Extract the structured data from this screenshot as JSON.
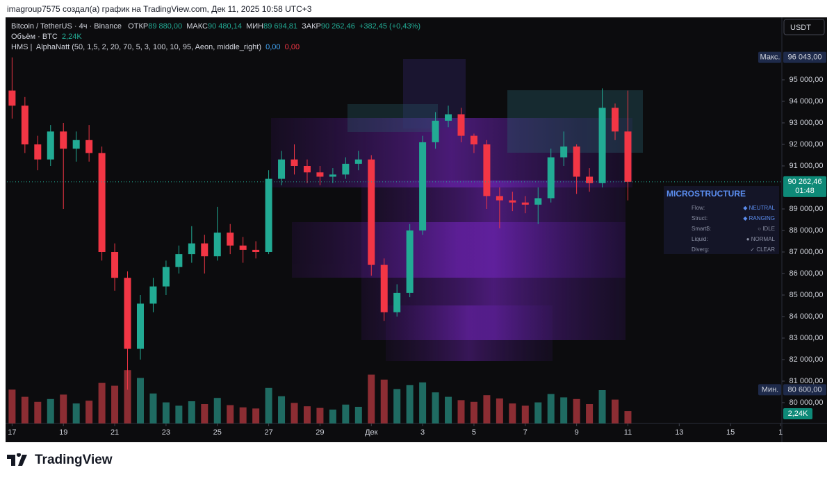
{
  "header": {
    "attribution": "imagroup7575 создал(а) график на TradingView.com, Дек 11, 2025 10:58 UTC+3",
    "symbol": "Bitcoin / TetherUS · 4ч · Binance",
    "ohlc": [
      {
        "name": "ОТКР",
        "value": "89 880,00"
      },
      {
        "name": "МАКС",
        "value": "90 480,14"
      },
      {
        "name": "МИН",
        "value": "89 694,81"
      },
      {
        "name": "ЗАКР",
        "value": "90 262,46"
      }
    ],
    "change": "+382,45 (+0,43%)",
    "volume_title": "Объём · BTC",
    "volume_value": "2,24K",
    "indicator_name": "HMS",
    "indicator_params": "AlphaNatt (50, 1,5, 2, 20, 70, 5, 3, 100, 10, 95, Aeon, middle_right)",
    "indicator_values": [
      "0,00",
      "0,00"
    ]
  },
  "chart_data": {
    "type": "candlestick",
    "x": [
      0,
      0.5,
      1,
      1.5,
      2,
      2.5,
      3,
      3.5,
      4,
      4.5,
      5,
      5.5,
      6,
      6.5,
      7,
      7.5,
      8,
      8.5,
      9,
      9.5,
      10,
      10.5,
      11,
      11.5,
      12,
      12.5,
      13,
      13.5,
      14,
      14.5,
      15,
      15.5,
      16,
      16.5,
      17,
      17.5,
      18,
      18.5,
      19,
      19.5,
      20,
      20.5,
      21,
      21.5,
      22,
      22.5,
      23,
      23.5,
      24
    ],
    "open": [
      94500,
      93800,
      92000,
      91300,
      92600,
      91800,
      92200,
      91600,
      87000,
      85800,
      82500,
      84600,
      85400,
      86300,
      86900,
      87400,
      86800,
      87900,
      87300,
      87100,
      87000,
      90400,
      91300,
      91000,
      90700,
      90500,
      90600,
      91100,
      91300,
      86400,
      84200,
      85100,
      88000,
      92100,
      93100,
      93400,
      92400,
      92000,
      89600,
      89400,
      89300,
      89200,
      89500,
      91400,
      91900,
      90500,
      90200,
      93700,
      92600
    ],
    "high": [
      96043,
      94200,
      92400,
      92900,
      93000,
      92600,
      92900,
      91900,
      87400,
      86100,
      85000,
      85800,
      86600,
      87300,
      88200,
      87800,
      89100,
      88300,
      87700,
      87500,
      90800,
      91700,
      92000,
      91300,
      91000,
      90900,
      91400,
      91700,
      91500,
      86700,
      85500,
      88300,
      92400,
      93500,
      93800,
      93700,
      92500,
      92200,
      90000,
      89800,
      89600,
      90000,
      91800,
      92600,
      92000,
      90900,
      94600,
      93900,
      94500
    ],
    "low": [
      93200,
      91600,
      90800,
      91000,
      89000,
      91200,
      91200,
      86600,
      85200,
      80600,
      82000,
      84200,
      85000,
      86000,
      86500,
      86000,
      86600,
      86900,
      86500,
      86700,
      86900,
      90100,
      90600,
      90200,
      90100,
      90200,
      90400,
      90800,
      85900,
      83800,
      84000,
      84900,
      87800,
      91800,
      92800,
      92100,
      91600,
      89000,
      88100,
      88900,
      88800,
      88300,
      89300,
      91000,
      89700,
      89800,
      90000,
      92200,
      89400
    ],
    "close": [
      93800,
      92000,
      91300,
      92600,
      91800,
      92200,
      91600,
      87000,
      85800,
      82500,
      84600,
      85400,
      86300,
      86900,
      87400,
      86800,
      87900,
      87300,
      87100,
      87000,
      90400,
      91300,
      91000,
      90700,
      90500,
      90600,
      91100,
      91300,
      86400,
      84200,
      85100,
      88000,
      92100,
      93100,
      93400,
      92400,
      92000,
      89600,
      89400,
      89300,
      89200,
      89500,
      91400,
      91900,
      90500,
      90200,
      93700,
      92600,
      90262.46
    ],
    "volume": [
      6.1,
      4.8,
      3.9,
      4.4,
      5.2,
      3.6,
      4.1,
      7.3,
      6.8,
      9.6,
      8.2,
      5.4,
      3.8,
      3.2,
      4.0,
      3.5,
      4.6,
      3.3,
      2.9,
      2.7,
      6.4,
      4.9,
      3.7,
      3.1,
      2.8,
      2.5,
      3.4,
      3.0,
      8.8,
      7.9,
      6.2,
      6.9,
      7.4,
      5.6,
      4.8,
      4.2,
      3.9,
      5.1,
      4.5,
      3.6,
      3.2,
      3.8,
      5.3,
      4.7,
      4.4,
      3.5,
      6.0,
      4.3,
      2.24
    ],
    "colors": {
      "up": "#22ab94",
      "down": "#f23645",
      "up_volume": "#1f6b62",
      "down_volume": "#8c2d33"
    },
    "ylim": [
      79032,
      97742
    ],
    "yticks": [
      {
        "value": 80000,
        "label": "80 000,00"
      },
      {
        "value": 81000,
        "label": "81 000,00"
      },
      {
        "value": 82000,
        "label": "82 000,00"
      },
      {
        "value": 83000,
        "label": "83 000,00"
      },
      {
        "value": 84000,
        "label": "84 000,00"
      },
      {
        "value": 85000,
        "label": "85 000,00"
      },
      {
        "value": 86000,
        "label": "86 000,00"
      },
      {
        "value": 87000,
        "label": "87 000,00"
      },
      {
        "value": 88000,
        "label": "88 000,00"
      },
      {
        "value": 89000,
        "label": "89 000,00"
      },
      {
        "value": 91000,
        "label": "91 000,00"
      },
      {
        "value": 92000,
        "label": "92 000,00"
      },
      {
        "value": 93000,
        "label": "93 000,00"
      },
      {
        "value": 94000,
        "label": "94 000,00"
      },
      {
        "value": 95000,
        "label": "95 000,00"
      }
    ],
    "xlim": [
      -0.2,
      30
    ],
    "xticks": [
      {
        "value": 0,
        "label": "17"
      },
      {
        "value": 2,
        "label": "19"
      },
      {
        "value": 4,
        "label": "21"
      },
      {
        "value": 6,
        "label": "23"
      },
      {
        "value": 8,
        "label": "25"
      },
      {
        "value": 10,
        "label": "27"
      },
      {
        "value": 12,
        "label": "29"
      },
      {
        "value": 14,
        "label": "Дек"
      },
      {
        "value": 16,
        "label": "3"
      },
      {
        "value": 18,
        "label": "5"
      },
      {
        "value": 20,
        "label": "7"
      },
      {
        "value": 22,
        "label": "9"
      },
      {
        "value": 24,
        "label": "11"
      },
      {
        "value": 26,
        "label": "13"
      },
      {
        "value": 28,
        "label": "15"
      },
      {
        "value": 29.95,
        "label": "1"
      }
    ],
    "volume_lim": [
      0,
      10
    ],
    "currency": "USDT",
    "last_price": {
      "value": 90262.46,
      "label": "90 262,46",
      "countdown": "01:48"
    },
    "max_marker": {
      "name": "Макс.",
      "value": 96043,
      "label": "96 043,00"
    },
    "min_marker": {
      "name": "Мин.",
      "value": 80600,
      "label": "80 600,00"
    },
    "volume_badge": "2,24K"
  },
  "panel": {
    "title": "MICROSTRUCTURE",
    "rows": [
      [
        "Flow:",
        "◆ NEUTRAL"
      ],
      [
        "Struct:",
        "◆ RANGING"
      ],
      [
        "Smart$:",
        "○ IDLE"
      ],
      [
        "Liquid:",
        "● NORMAL"
      ],
      [
        "Diverg:",
        "✓ CLEAR"
      ]
    ]
  },
  "footer": {
    "brand": "TradingView"
  }
}
